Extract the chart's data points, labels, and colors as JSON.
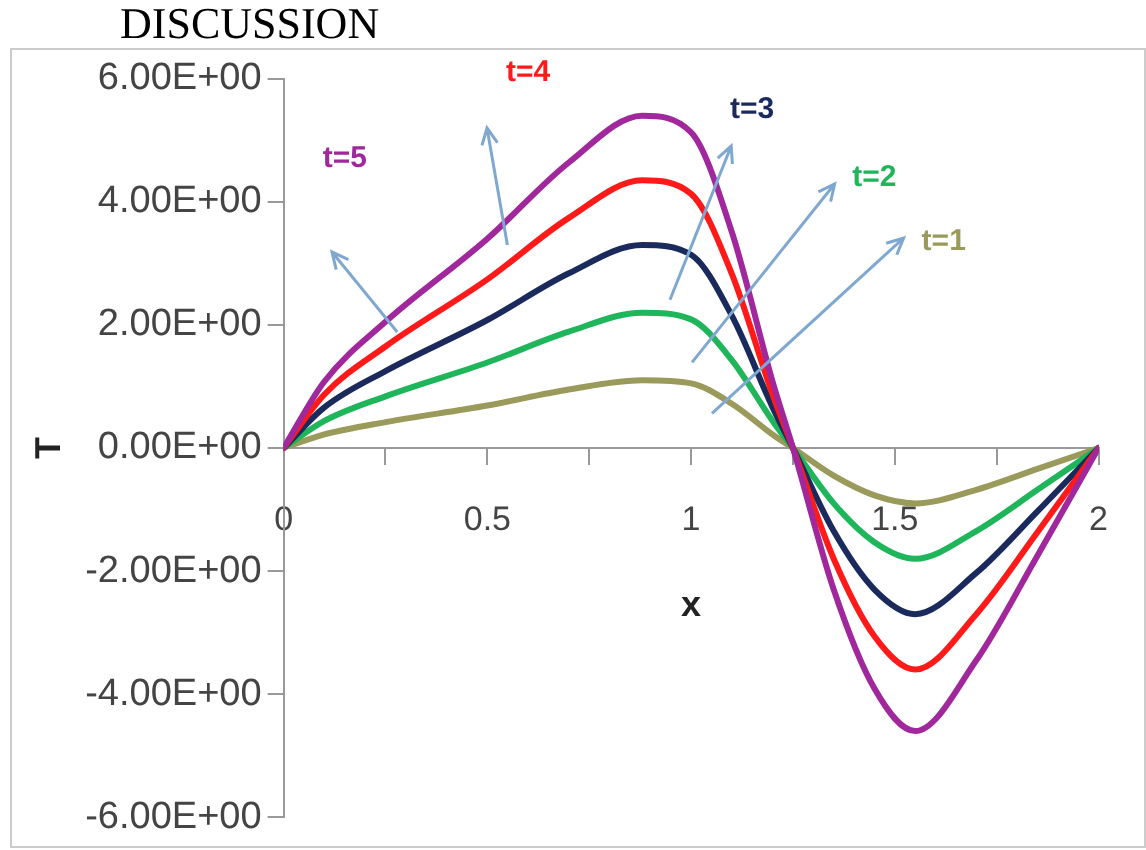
{
  "chart_data": {
    "type": "line",
    "title": "DISCUSSION",
    "xlabel": "x",
    "ylabel": "T",
    "xlim": [
      0,
      2
    ],
    "xticks": [
      0,
      {
        "value": 0.25,
        "label": null
      },
      0.5,
      {
        "value": 0.75,
        "label": null
      },
      1,
      {
        "value": 1.25,
        "label": null
      },
      1.5,
      {
        "value": 1.75,
        "label": null
      },
      2
    ],
    "ylim": [
      -6,
      6
    ],
    "yticks": [
      {
        "value": -6,
        "label": "-6.00E+00"
      },
      {
        "value": -4,
        "label": "-4.00E+00"
      },
      {
        "value": -2,
        "label": "-2.00E+00"
      },
      {
        "value": 0,
        "label": "0.00E+00"
      },
      {
        "value": 2,
        "label": "2.00E+00"
      },
      {
        "value": 4,
        "label": "4.00E+00"
      },
      {
        "value": 6,
        "label": "6.00E+00"
      }
    ],
    "x": [
      0,
      0.1,
      0.25,
      0.5,
      0.7,
      0.88,
      1.0,
      1.1,
      1.2,
      1.25,
      1.35,
      1.45,
      1.55,
      1.7,
      1.85,
      2
    ],
    "grid": false,
    "legend": false,
    "marker": "none",
    "line_style": "solid",
    "series": [
      {
        "name": "t=5",
        "color": "#a0289c",
        "values": [
          0,
          1.08,
          2.05,
          3.4,
          4.64,
          5.4,
          5.13,
          3.51,
          1.08,
          0,
          -2.3,
          -3.91,
          -4.6,
          -3.45,
          -1.75,
          0
        ]
      },
      {
        "name": "t=4",
        "color": "#ff1a1a",
        "values": [
          0,
          0.87,
          1.65,
          2.74,
          3.74,
          4.35,
          4.13,
          2.83,
          0.87,
          0,
          -1.8,
          -3.06,
          -3.6,
          -2.7,
          -1.37,
          0
        ]
      },
      {
        "name": "t=3",
        "color": "#1a2a5c",
        "values": [
          0,
          0.66,
          1.25,
          2.08,
          2.84,
          3.3,
          3.14,
          2.15,
          0.66,
          0,
          -1.35,
          -2.3,
          -2.7,
          -2.03,
          -1.03,
          0
        ]
      },
      {
        "name": "t=2",
        "color": "#1fb55a",
        "values": [
          0,
          0.44,
          0.84,
          1.39,
          1.89,
          2.2,
          2.09,
          1.43,
          0.44,
          0,
          -0.9,
          -1.53,
          -1.8,
          -1.35,
          -0.68,
          0
        ]
      },
      {
        "name": "t=1",
        "color": "#9a9a5a",
        "values": [
          0,
          0.22,
          0.42,
          0.69,
          0.95,
          1.1,
          1.05,
          0.72,
          0.22,
          0,
          -0.45,
          -0.77,
          -0.9,
          -0.68,
          -0.34,
          0
        ]
      }
    ]
  }
}
